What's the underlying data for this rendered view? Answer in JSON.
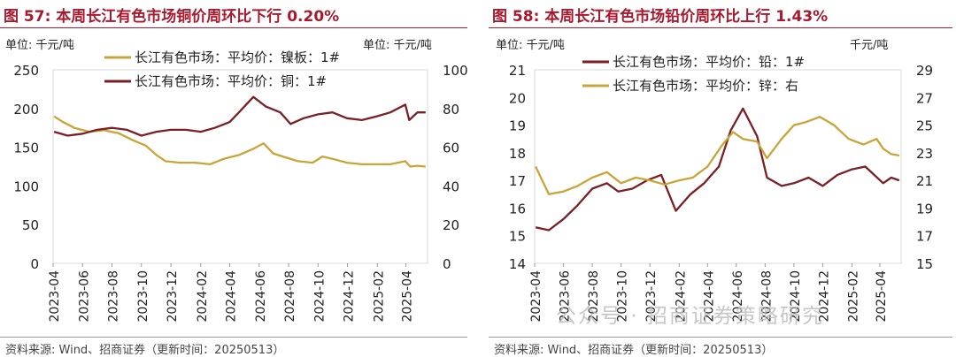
{
  "watermark": "公众号 · 招商证券策略研究",
  "colors": {
    "title": "#a8192e",
    "copper": "#7a1f26",
    "nickel": "#c9a437",
    "lead": "#7a1f26",
    "zinc": "#c9a437"
  },
  "panels": [
    {
      "figure_title": "图 57:  本周长江有色市场铜价周环比下行 0.20%",
      "unit_left": "单位:  千元/吨",
      "unit_right": "单位:  千元/吨",
      "source": "资料来源:  Wind、招商证券（更新时间：20250513）"
    },
    {
      "figure_title": "图 58:  本周长江有色市场铅价周环比上行 1.43%",
      "unit_left": "单位:  千元/吨",
      "unit_right": "千元/吨",
      "source": "资料来源:  Wind、招商证券（更新时间：20250513）"
    }
  ],
  "chart_data": [
    {
      "type": "line",
      "x_ticks": [
        "2023-04",
        "2023-06",
        "2023-08",
        "2023-10",
        "2023-12",
        "2024-02",
        "2024-04",
        "2024-06",
        "2024-08",
        "2024-10",
        "2024-12",
        "2025-02",
        "2025-04"
      ],
      "y_left": {
        "range": [
          0,
          250
        ],
        "ticks": [
          0,
          50,
          100,
          150,
          200,
          250
        ]
      },
      "y_right": {
        "range": [
          0,
          100
        ],
        "ticks": [
          0,
          20,
          40,
          60,
          80,
          100
        ]
      },
      "legend_position": "top-center",
      "series": [
        {
          "name": "长江有色市场：平均价：镍板：1#",
          "axis": "left",
          "color": "#c9a437",
          "x": [
            "2023-04-03",
            "2023-04-20",
            "2023-05-15",
            "2023-06-15",
            "2023-07-15",
            "2023-08-15",
            "2023-09-10",
            "2023-10-10",
            "2023-11-01",
            "2023-11-20",
            "2023-12-20",
            "2024-01-20",
            "2024-02-20",
            "2024-03-20",
            "2024-04-20",
            "2024-05-20",
            "2024-06-10",
            "2024-06-30",
            "2024-07-20",
            "2024-08-20",
            "2024-09-20",
            "2024-10-10",
            "2024-10-31",
            "2024-11-30",
            "2024-12-31",
            "2025-01-31",
            "2025-02-28",
            "2025-03-31",
            "2025-04-10",
            "2025-04-25",
            "2025-05-12"
          ],
          "values": [
            190,
            183,
            175,
            170,
            172,
            168,
            160,
            152,
            140,
            132,
            130,
            130,
            128,
            135,
            140,
            148,
            155,
            142,
            138,
            132,
            130,
            138,
            135,
            130,
            128,
            128,
            128,
            132,
            125,
            126,
            125
          ]
        },
        {
          "name": "长江有色市场：平均价：铜：1#",
          "axis": "right",
          "color": "#7a1f26",
          "x": [
            "2023-04-03",
            "2023-05-01",
            "2023-06-01",
            "2023-07-01",
            "2023-08-01",
            "2023-09-01",
            "2023-10-01",
            "2023-11-01",
            "2023-12-01",
            "2024-01-01",
            "2024-02-01",
            "2024-03-01",
            "2024-04-01",
            "2024-04-20",
            "2024-05-20",
            "2024-06-15",
            "2024-07-15",
            "2024-08-05",
            "2024-09-01",
            "2024-10-01",
            "2024-10-31",
            "2024-11-30",
            "2024-12-31",
            "2025-01-31",
            "2025-02-28",
            "2025-03-31",
            "2025-04-08",
            "2025-04-25",
            "2025-05-12"
          ],
          "values": [
            68,
            66,
            67,
            69,
            70,
            69,
            66,
            68,
            69,
            69,
            68,
            70,
            73,
            78,
            86,
            81,
            78,
            72,
            75,
            77,
            78,
            75,
            74,
            76,
            78,
            82,
            74,
            78,
            78
          ]
        }
      ]
    },
    {
      "type": "line",
      "x_ticks": [
        "2023-04",
        "2023-06",
        "2023-08",
        "2023-10",
        "2023-12",
        "2024-02",
        "2024-04",
        "2024-06",
        "2024-08",
        "2024-10",
        "2024-12",
        "2025-02",
        "2025-04"
      ],
      "y_left": {
        "range": [
          14,
          21
        ],
        "ticks": [
          14,
          15,
          16,
          17,
          18,
          19,
          20,
          21
        ]
      },
      "y_right": {
        "range": [
          15,
          29
        ],
        "ticks": [
          15,
          17,
          19,
          21,
          23,
          25,
          27,
          29
        ]
      },
      "legend_position": "top-center",
      "series": [
        {
          "name": "长江有色市场：平均价：铅：1#",
          "axis": "left",
          "color": "#7a1f26",
          "x": [
            "2023-04-03",
            "2023-05-01",
            "2023-06-01",
            "2023-07-01",
            "2023-08-01",
            "2023-09-01",
            "2023-09-25",
            "2023-10-25",
            "2023-11-25",
            "2023-12-25",
            "2024-01-25",
            "2024-02-25",
            "2024-03-25",
            "2024-04-25",
            "2024-05-20",
            "2024-06-15",
            "2024-07-15",
            "2024-08-05",
            "2024-09-05",
            "2024-10-01",
            "2024-11-01",
            "2024-12-01",
            "2025-01-01",
            "2025-02-01",
            "2025-03-01",
            "2025-04-08",
            "2025-04-25",
            "2025-05-12"
          ],
          "values": [
            15.3,
            15.2,
            15.6,
            16.1,
            16.7,
            16.9,
            16.6,
            16.7,
            17.0,
            17.2,
            15.9,
            16.5,
            16.9,
            17.5,
            18.8,
            19.6,
            18.6,
            17.1,
            16.8,
            16.9,
            17.1,
            16.8,
            17.2,
            17.4,
            17.5,
            16.9,
            17.1,
            17.0
          ]
        },
        {
          "name": "长江有色市场：平均价：锌：右",
          "axis": "right",
          "color": "#c9a437",
          "x": [
            "2023-04-03",
            "2023-05-01",
            "2023-06-01",
            "2023-07-01",
            "2023-08-01",
            "2023-09-01",
            "2023-10-01",
            "2023-11-01",
            "2023-12-01",
            "2024-01-01",
            "2024-02-01",
            "2024-03-01",
            "2024-04-01",
            "2024-05-01",
            "2024-05-25",
            "2024-06-15",
            "2024-07-15",
            "2024-08-05",
            "2024-09-05",
            "2024-10-01",
            "2024-10-25",
            "2024-11-25",
            "2024-12-25",
            "2025-01-25",
            "2025-02-25",
            "2025-03-25",
            "2025-04-08",
            "2025-04-25",
            "2025-05-12"
          ],
          "values": [
            22.0,
            20.0,
            20.2,
            20.6,
            21.2,
            21.6,
            20.8,
            21.2,
            21.0,
            20.7,
            21.0,
            21.2,
            22.0,
            23.5,
            24.5,
            24.0,
            23.8,
            22.6,
            24.0,
            25.0,
            25.2,
            25.6,
            25.0,
            24.0,
            23.6,
            24.0,
            23.3,
            22.9,
            22.8
          ]
        }
      ]
    }
  ]
}
